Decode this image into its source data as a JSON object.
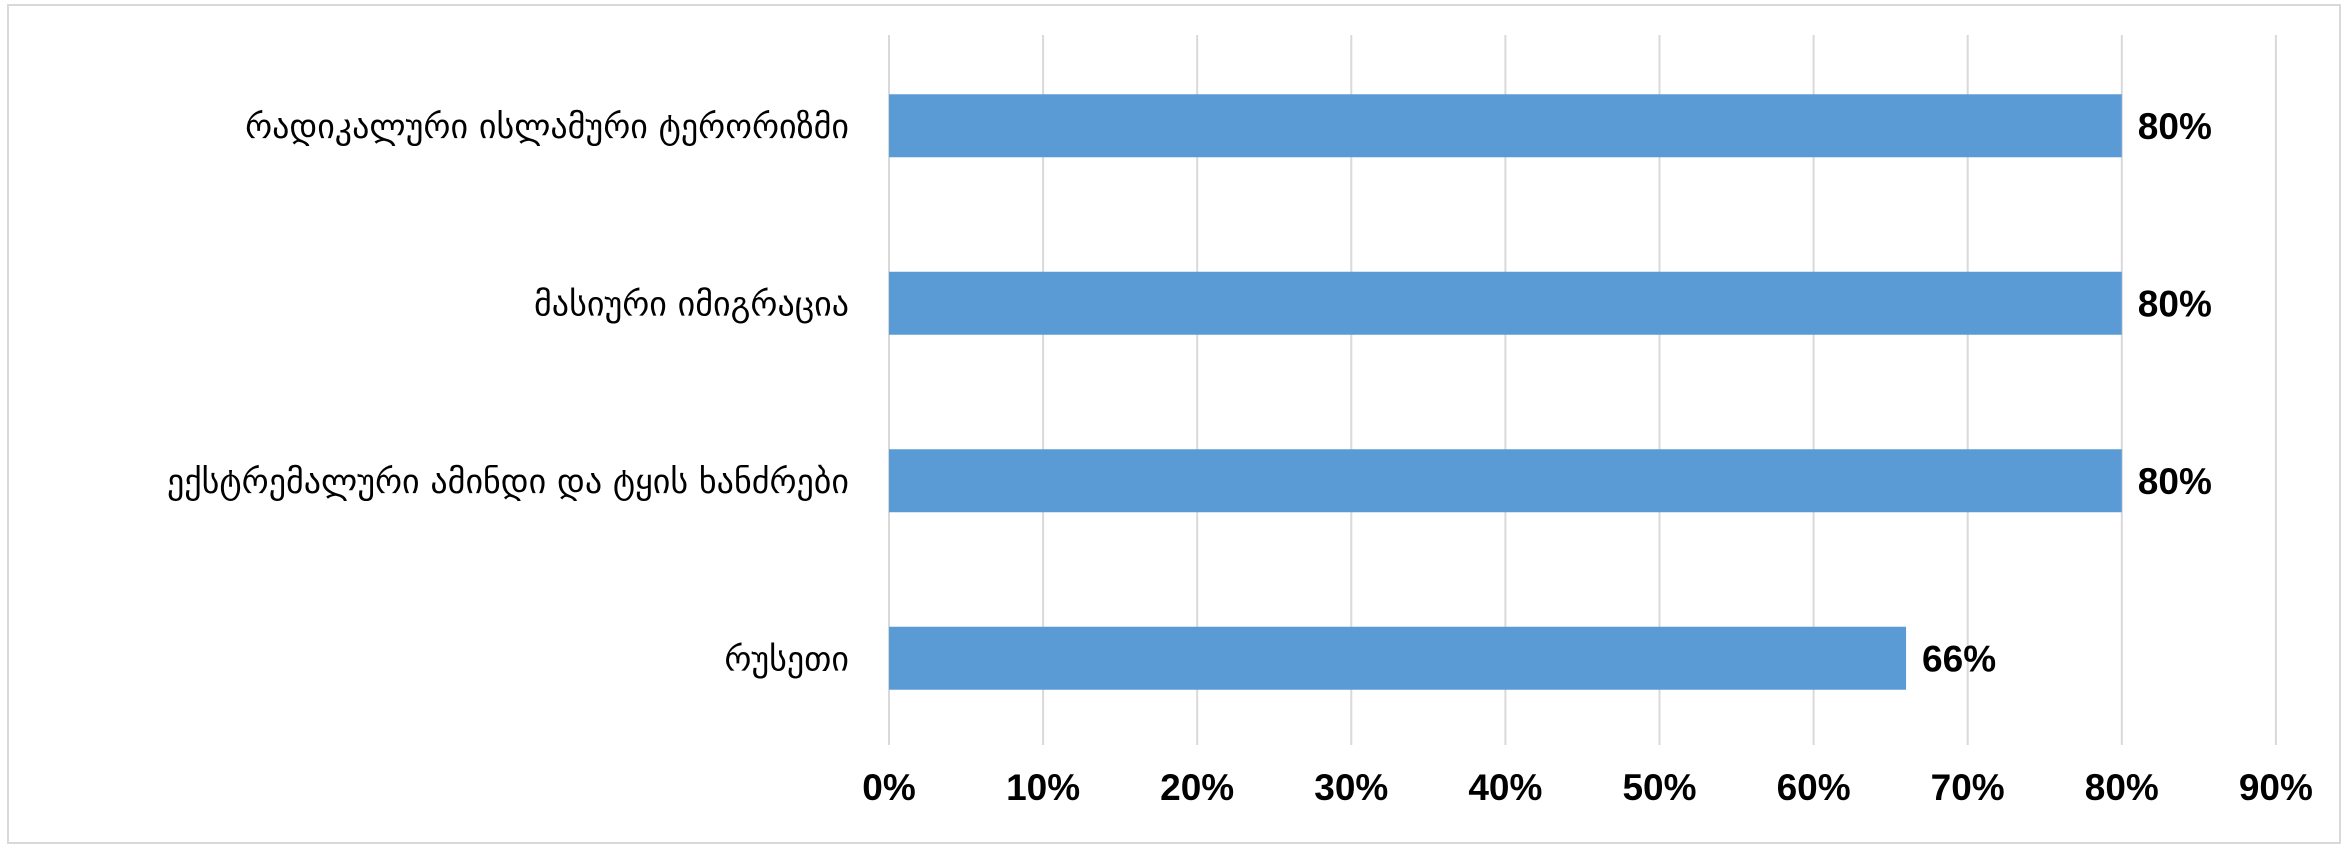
{
  "chart_data": {
    "type": "bar",
    "orientation": "horizontal",
    "categories": [
      "რადიკალური ისლამური ტერორიზმი",
      "მასიური იმიგრაცია",
      "ექსტრემალური ამინდი და ტყის ხანძრები",
      "რუსეთი"
    ],
    "values": [
      80,
      80,
      80,
      66
    ],
    "data_labels": [
      "80%",
      "80%",
      "80%",
      "66%"
    ],
    "xlim": [
      0,
      90
    ],
    "x_ticks": [
      0,
      10,
      20,
      30,
      40,
      50,
      60,
      70,
      80,
      90
    ],
    "x_tick_labels": [
      "0%",
      "10%",
      "20%",
      "30%",
      "40%",
      "50%",
      "60%",
      "70%",
      "80%",
      "90%"
    ],
    "title": "",
    "xlabel": "",
    "ylabel": "",
    "grid": "vertical",
    "legend": "none",
    "bar_color": "#5b9bd5",
    "grid_color": "#d9d9d9"
  }
}
